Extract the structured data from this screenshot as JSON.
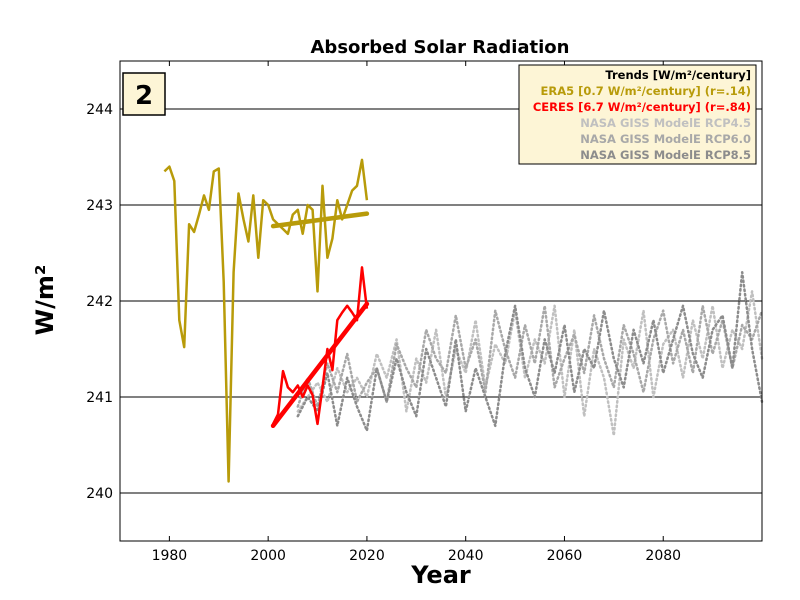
{
  "chart_data": {
    "type": "line",
    "title": "Absorbed Solar Radiation",
    "xlabel": "Year",
    "ylabel": "W/m²",
    "xlim": [
      1970,
      2100
    ],
    "ylim": [
      239.5,
      244.5
    ],
    "xticks": [
      1980,
      2000,
      2020,
      2040,
      2060,
      2080
    ],
    "yticks": [
      240,
      241,
      242,
      243,
      244
    ],
    "grid": "horizontal",
    "panel_label": "2",
    "legend": {
      "placement": "top-right",
      "title": "Trends [W/m²/century]",
      "entries": [
        {
          "text": "ERA5   [0.7 W/m²/century] (r=.14)",
          "color": "#b89b0a"
        },
        {
          "text": "CERES  [6.7 W/m²/century] (r=.84)",
          "color": "#ff0000"
        },
        {
          "text": "NASA GISS ModelE RCP4.5",
          "color": "#c0c0c0"
        },
        {
          "text": "NASA GISS ModelE RCP6.0",
          "color": "#a8a8a8"
        },
        {
          "text": "NASA GISS ModelE RCP8.5",
          "color": "#8c8c8c"
        }
      ]
    },
    "series": [
      {
        "id": "era5",
        "color": "#b89b0a",
        "style": "solid",
        "x": [
          1979,
          1980,
          1981,
          1982,
          1983,
          1984,
          1985,
          1986,
          1987,
          1988,
          1989,
          1990,
          1991,
          1992,
          1993,
          1994,
          1995,
          1996,
          1997,
          1998,
          1999,
          2000,
          2001,
          2002,
          2003,
          2004,
          2005,
          2006,
          2007,
          2008,
          2009,
          2010,
          2011,
          2012,
          2013,
          2014,
          2015,
          2016,
          2017,
          2018,
          2019,
          2020
        ],
        "y": [
          243.35,
          243.4,
          243.25,
          241.8,
          241.52,
          242.8,
          242.72,
          242.9,
          243.1,
          242.95,
          243.35,
          243.38,
          242.2,
          240.12,
          242.3,
          243.12,
          242.85,
          242.62,
          243.1,
          242.45,
          243.05,
          243.0,
          242.85,
          242.8,
          242.75,
          242.7,
          242.9,
          242.95,
          242.7,
          243.0,
          242.95,
          242.1,
          243.2,
          242.45,
          242.65,
          243.05,
          242.85,
          243.0,
          243.15,
          243.2,
          243.47,
          243.05
        ]
      },
      {
        "id": "ceres",
        "color": "#ff0000",
        "style": "solid",
        "x": [
          2001,
          2002,
          2003,
          2004,
          2005,
          2006,
          2007,
          2008,
          2009,
          2010,
          2011,
          2012,
          2013,
          2014,
          2015,
          2016,
          2017,
          2018,
          2019,
          2020
        ],
        "y": [
          240.72,
          240.82,
          241.27,
          241.1,
          241.05,
          241.12,
          241.0,
          241.12,
          241.02,
          240.72,
          241.1,
          241.5,
          241.28,
          241.8,
          241.88,
          241.95,
          241.88,
          241.8,
          242.35,
          241.92
        ]
      },
      {
        "id": "rcp45",
        "color": "#c0c0c0",
        "style": "dotted",
        "x": [
          2006,
          2008,
          2010,
          2012,
          2014,
          2016,
          2018,
          2020,
          2022,
          2024,
          2026,
          2028,
          2030,
          2032,
          2034,
          2036,
          2038,
          2040,
          2042,
          2044,
          2046,
          2048,
          2050,
          2052,
          2054,
          2056,
          2058,
          2060,
          2062,
          2064,
          2066,
          2068,
          2070,
          2072,
          2074,
          2076,
          2078,
          2080,
          2082,
          2084,
          2086,
          2088,
          2090,
          2092,
          2094,
          2096,
          2098,
          2100
        ],
        "y": [
          240.85,
          241.0,
          241.15,
          240.95,
          241.3,
          241.05,
          241.2,
          241.0,
          241.45,
          241.2,
          241.6,
          240.85,
          241.4,
          241.15,
          241.7,
          241.0,
          241.5,
          241.25,
          241.8,
          241.1,
          241.55,
          241.35,
          241.9,
          241.2,
          241.6,
          241.35,
          241.95,
          241.0,
          241.7,
          240.8,
          241.5,
          241.2,
          240.6,
          241.6,
          241.3,
          241.9,
          241.0,
          241.55,
          241.7,
          241.2,
          241.8,
          241.4,
          241.95,
          241.3,
          241.7,
          241.5,
          242.1,
          241.4
        ]
      },
      {
        "id": "rcp60",
        "color": "#a8a8a8",
        "style": "dotted",
        "x": [
          2006,
          2008,
          2010,
          2012,
          2014,
          2016,
          2018,
          2020,
          2022,
          2024,
          2026,
          2028,
          2030,
          2032,
          2034,
          2036,
          2038,
          2040,
          2042,
          2044,
          2046,
          2048,
          2050,
          2052,
          2054,
          2056,
          2058,
          2060,
          2062,
          2064,
          2066,
          2068,
          2070,
          2072,
          2074,
          2076,
          2078,
          2080,
          2082,
          2084,
          2086,
          2088,
          2090,
          2092,
          2094,
          2096,
          2098,
          2100
        ],
        "y": [
          240.9,
          241.2,
          240.9,
          241.35,
          241.05,
          241.45,
          240.95,
          241.15,
          241.3,
          240.95,
          241.55,
          241.3,
          241.1,
          241.7,
          241.4,
          241.25,
          241.85,
          241.3,
          241.6,
          241.05,
          241.9,
          241.5,
          241.2,
          241.75,
          241.35,
          241.95,
          241.1,
          241.4,
          241.65,
          241.25,
          241.85,
          241.4,
          241.1,
          241.75,
          241.45,
          241.05,
          241.6,
          241.9,
          241.35,
          241.7,
          241.25,
          241.95,
          241.45,
          241.8,
          241.3,
          241.75,
          241.6,
          241.9
        ]
      },
      {
        "id": "rcp85",
        "color": "#8c8c8c",
        "style": "dotted",
        "x": [
          2006,
          2008,
          2010,
          2012,
          2014,
          2016,
          2018,
          2020,
          2022,
          2024,
          2026,
          2028,
          2030,
          2032,
          2034,
          2036,
          2038,
          2040,
          2042,
          2044,
          2046,
          2048,
          2050,
          2052,
          2054,
          2056,
          2058,
          2060,
          2062,
          2064,
          2066,
          2068,
          2070,
          2072,
          2074,
          2076,
          2078,
          2080,
          2082,
          2084,
          2086,
          2088,
          2090,
          2092,
          2094,
          2096,
          2098,
          2100
        ],
        "y": [
          240.8,
          241.0,
          240.85,
          241.25,
          240.7,
          241.2,
          240.9,
          240.65,
          241.3,
          240.95,
          241.4,
          241.05,
          240.8,
          241.5,
          241.2,
          240.9,
          241.6,
          240.85,
          241.3,
          241.0,
          240.7,
          241.45,
          241.95,
          241.3,
          241.0,
          241.6,
          241.25,
          241.75,
          241.05,
          241.5,
          241.3,
          241.9,
          241.4,
          241.1,
          241.7,
          241.35,
          241.8,
          241.25,
          241.6,
          241.95,
          241.45,
          241.2,
          241.7,
          241.85,
          241.3,
          242.3,
          241.5,
          240.95
        ]
      }
    ],
    "trend_lines": [
      {
        "id": "era5-trend",
        "color": "#b89b0a",
        "x": [
          2001,
          2020
        ],
        "y": [
          242.78,
          242.91
        ]
      },
      {
        "id": "ceres-trend",
        "color": "#ff0000",
        "x": [
          2001,
          2020
        ],
        "y": [
          240.7,
          241.97
        ]
      }
    ]
  }
}
